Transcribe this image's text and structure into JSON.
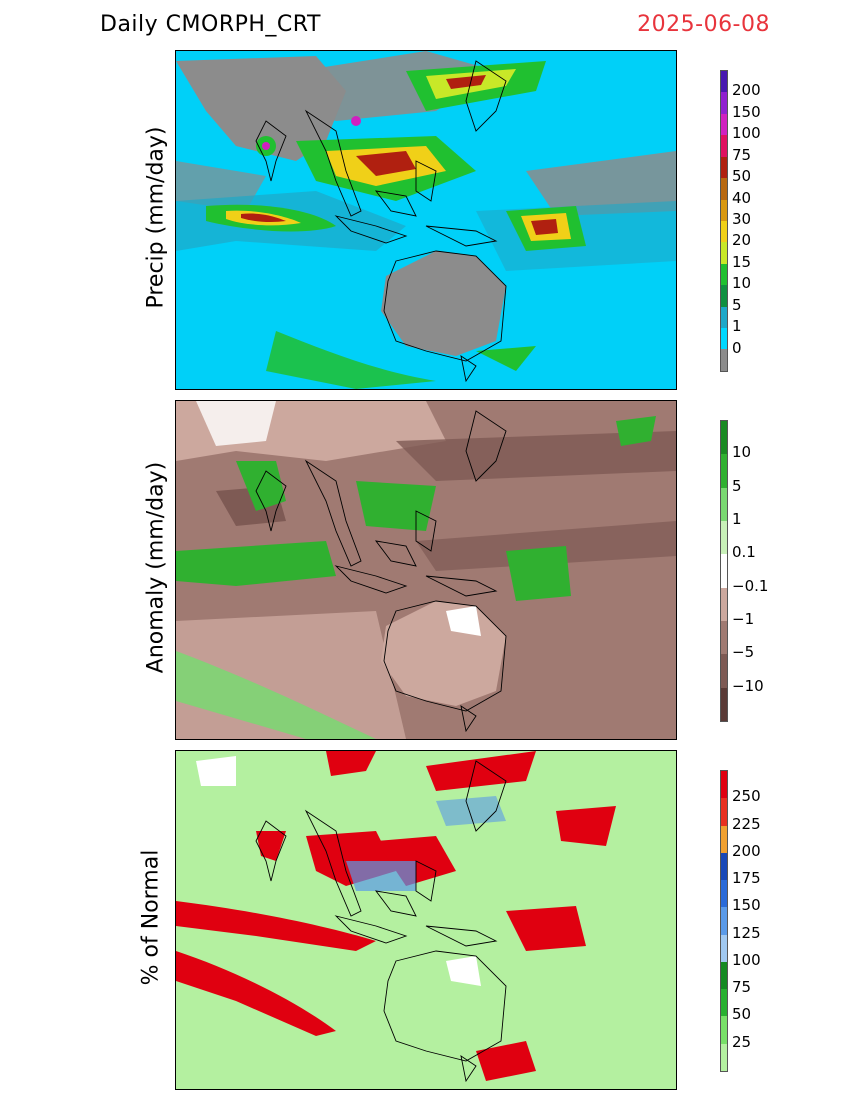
{
  "header": {
    "title": "Daily  CMORPH_CRT",
    "date": "2025-06-08"
  },
  "panels": [
    {
      "ylabel": "Precip  (mm/day)",
      "scale": [
        {
          "label": "",
          "color": "#8c8c8c"
        },
        {
          "label": "0",
          "color": "#00d8ff"
        },
        {
          "label": "1",
          "color": "#1ea8c8"
        },
        {
          "label": "5",
          "color": "#109040"
        },
        {
          "label": "10",
          "color": "#20c030"
        },
        {
          "label": "15",
          "color": "#c8e828"
        },
        {
          "label": "20",
          "color": "#f0d018"
        },
        {
          "label": "30",
          "color": "#d89810"
        },
        {
          "label": "40",
          "color": "#b86810"
        },
        {
          "label": "50",
          "color": "#b02010"
        },
        {
          "label": "75",
          "color": "#e01060"
        },
        {
          "label": "100",
          "color": "#d020c0"
        },
        {
          "label": "150",
          "color": "#9020d0"
        },
        {
          "label": "200",
          "color": "#4818b0"
        }
      ]
    },
    {
      "ylabel": "Anomaly  (mm/day)",
      "scale": [
        {
          "label": "",
          "color": "#5a3a36"
        },
        {
          "label": "−10",
          "color": "#7e5a54"
        },
        {
          "label": "−5",
          "color": "#a07a72"
        },
        {
          "label": "−1",
          "color": "#cca89e"
        },
        {
          "label": "−0.1",
          "color": "#ffffff"
        },
        {
          "label": "0.1",
          "color": "#c8f0b8"
        },
        {
          "label": "1",
          "color": "#7ad872"
        },
        {
          "label": "5",
          "color": "#30b030"
        },
        {
          "label": "10",
          "color": "#1a8a22"
        }
      ]
    },
    {
      "ylabel": "%  of  Normal",
      "scale": [
        {
          "label": "25",
          "color": "#b4f0a0"
        },
        {
          "label": "50",
          "color": "#78e068"
        },
        {
          "label": "75",
          "color": "#28b030"
        },
        {
          "label": "100",
          "color": "#158a22"
        },
        {
          "label": "125",
          "color": "#a0c8f0"
        },
        {
          "label": "150",
          "color": "#5a9ae8"
        },
        {
          "label": "175",
          "color": "#2a6ad8"
        },
        {
          "label": "200",
          "color": "#1848b8"
        },
        {
          "label": "225",
          "color": "#f0a030"
        },
        {
          "label": "250",
          "color": "#e83020"
        },
        {
          "label": "",
          "color": "#e00010"
        }
      ]
    }
  ]
}
